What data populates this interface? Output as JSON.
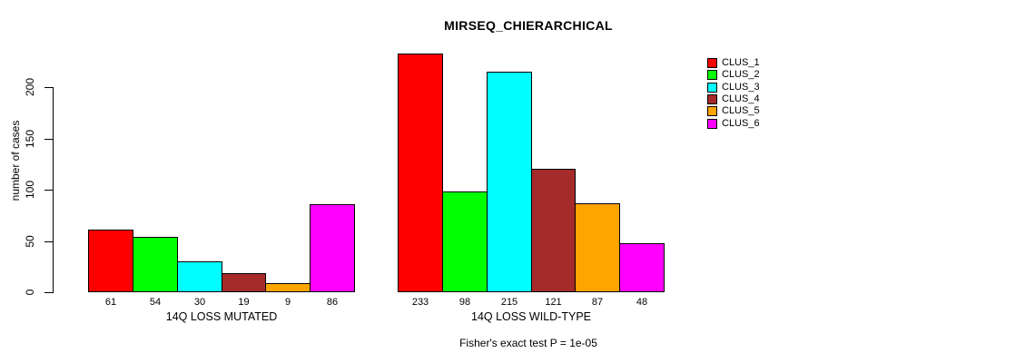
{
  "window": {
    "background": "#ffffff"
  },
  "chart_data": {
    "type": "bar",
    "title": "MIRSEQ_CHIERARCHICAL",
    "ylabel": "number of cases",
    "xlabel": "",
    "categories": [
      "14Q LOSS MUTATED",
      "14Q LOSS WILD-TYPE"
    ],
    "series": [
      {
        "name": "CLUS_1",
        "color": "#ff0000",
        "values": [
          61,
          233
        ]
      },
      {
        "name": "CLUS_2",
        "color": "#00ff00",
        "values": [
          54,
          98
        ]
      },
      {
        "name": "CLUS_3",
        "color": "#00ffff",
        "values": [
          30,
          215
        ]
      },
      {
        "name": "CLUS_4",
        "color": "#a52a2a",
        "values": [
          19,
          121
        ]
      },
      {
        "name": "CLUS_5",
        "color": "#ffa500",
        "values": [
          9,
          87
        ]
      },
      {
        "name": "CLUS_6",
        "color": "#ff00ff",
        "values": [
          86,
          48
        ]
      }
    ],
    "bar_value_labels": [
      [
        61,
        54,
        30,
        19,
        9,
        86
      ],
      [
        233,
        98,
        215,
        121,
        87,
        48
      ]
    ],
    "yticks": [
      0,
      50,
      100,
      150,
      200
    ],
    "ylim": [
      0,
      235
    ],
    "grid": false,
    "legend_position": "top-right",
    "bar_border_color": "#000000",
    "axis_color": "#000000",
    "annotation": "Fisher's exact test P = 1e-05"
  }
}
